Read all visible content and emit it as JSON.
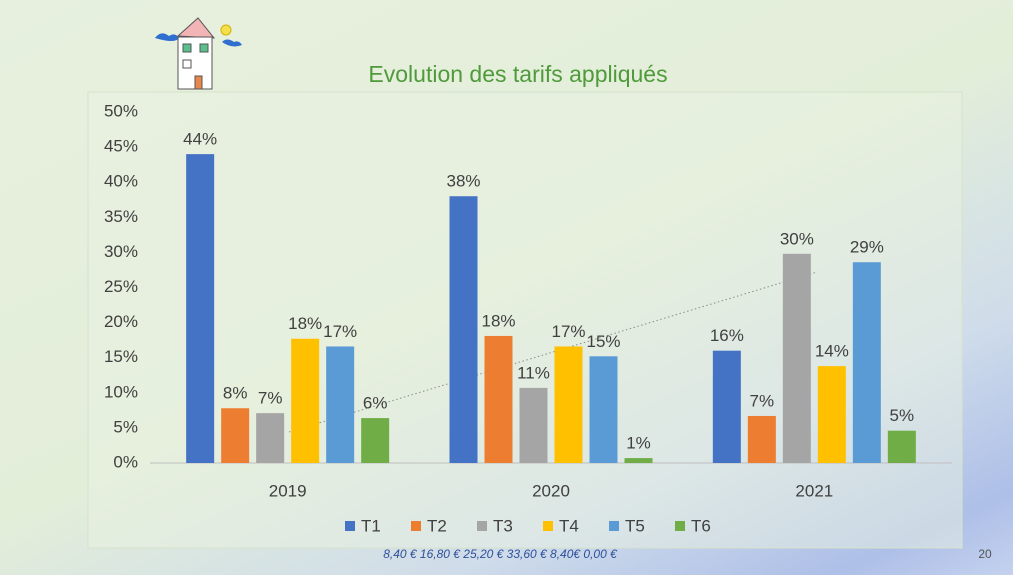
{
  "chart_data": {
    "type": "bar",
    "title": "Evolution des tarifs appliqués",
    "categories": [
      "2019",
      "2020",
      "2021"
    ],
    "series": [
      {
        "name": "T1",
        "color": "#4472c4",
        "values": [
          44,
          38,
          16
        ],
        "value_labels": [
          "44%",
          "38%",
          "16%"
        ]
      },
      {
        "name": "T2",
        "color": "#ed7d31",
        "values": [
          7.8,
          18.1,
          6.7
        ],
        "value_labels": [
          "8%",
          "18%",
          "7%"
        ]
      },
      {
        "name": "T3",
        "color": "#a5a5a5",
        "values": [
          7.1,
          10.7,
          29.8
        ],
        "value_labels": [
          "7%",
          "11%",
          "30%"
        ]
      },
      {
        "name": "T4",
        "color": "#ffc000",
        "values": [
          17.7,
          16.6,
          13.8
        ],
        "value_labels": [
          "18%",
          "17%",
          "14%"
        ]
      },
      {
        "name": "T5",
        "color": "#5b9bd5",
        "values": [
          16.6,
          15.2,
          28.6
        ],
        "value_labels": [
          "17%",
          "15%",
          "29%"
        ]
      },
      {
        "name": "T6",
        "color": "#70ad47",
        "values": [
          6.4,
          0.7,
          4.6
        ],
        "value_labels": [
          "6%",
          "1%",
          "5%"
        ]
      }
    ],
    "ylim": [
      0,
      50
    ],
    "yticks": [
      {
        "value": 0,
        "label": "0%"
      },
      {
        "value": 5,
        "label": "5%"
      },
      {
        "value": 10,
        "label": "10%"
      },
      {
        "value": 15,
        "label": "15%"
      },
      {
        "value": 20,
        "label": "20%"
      },
      {
        "value": 25,
        "label": "25%"
      },
      {
        "value": 30,
        "label": "30%"
      },
      {
        "value": 35,
        "label": "35%"
      },
      {
        "value": 40,
        "label": "40%"
      },
      {
        "value": 45,
        "label": "45%"
      },
      {
        "value": 50,
        "label": "50%"
      }
    ],
    "grid": false,
    "legend": "bottom"
  },
  "slide": {
    "footnote": "8,40 € 16,80 € 25,20 € 33,60 € 8,40€ 0,00 €",
    "page_number": "20"
  }
}
